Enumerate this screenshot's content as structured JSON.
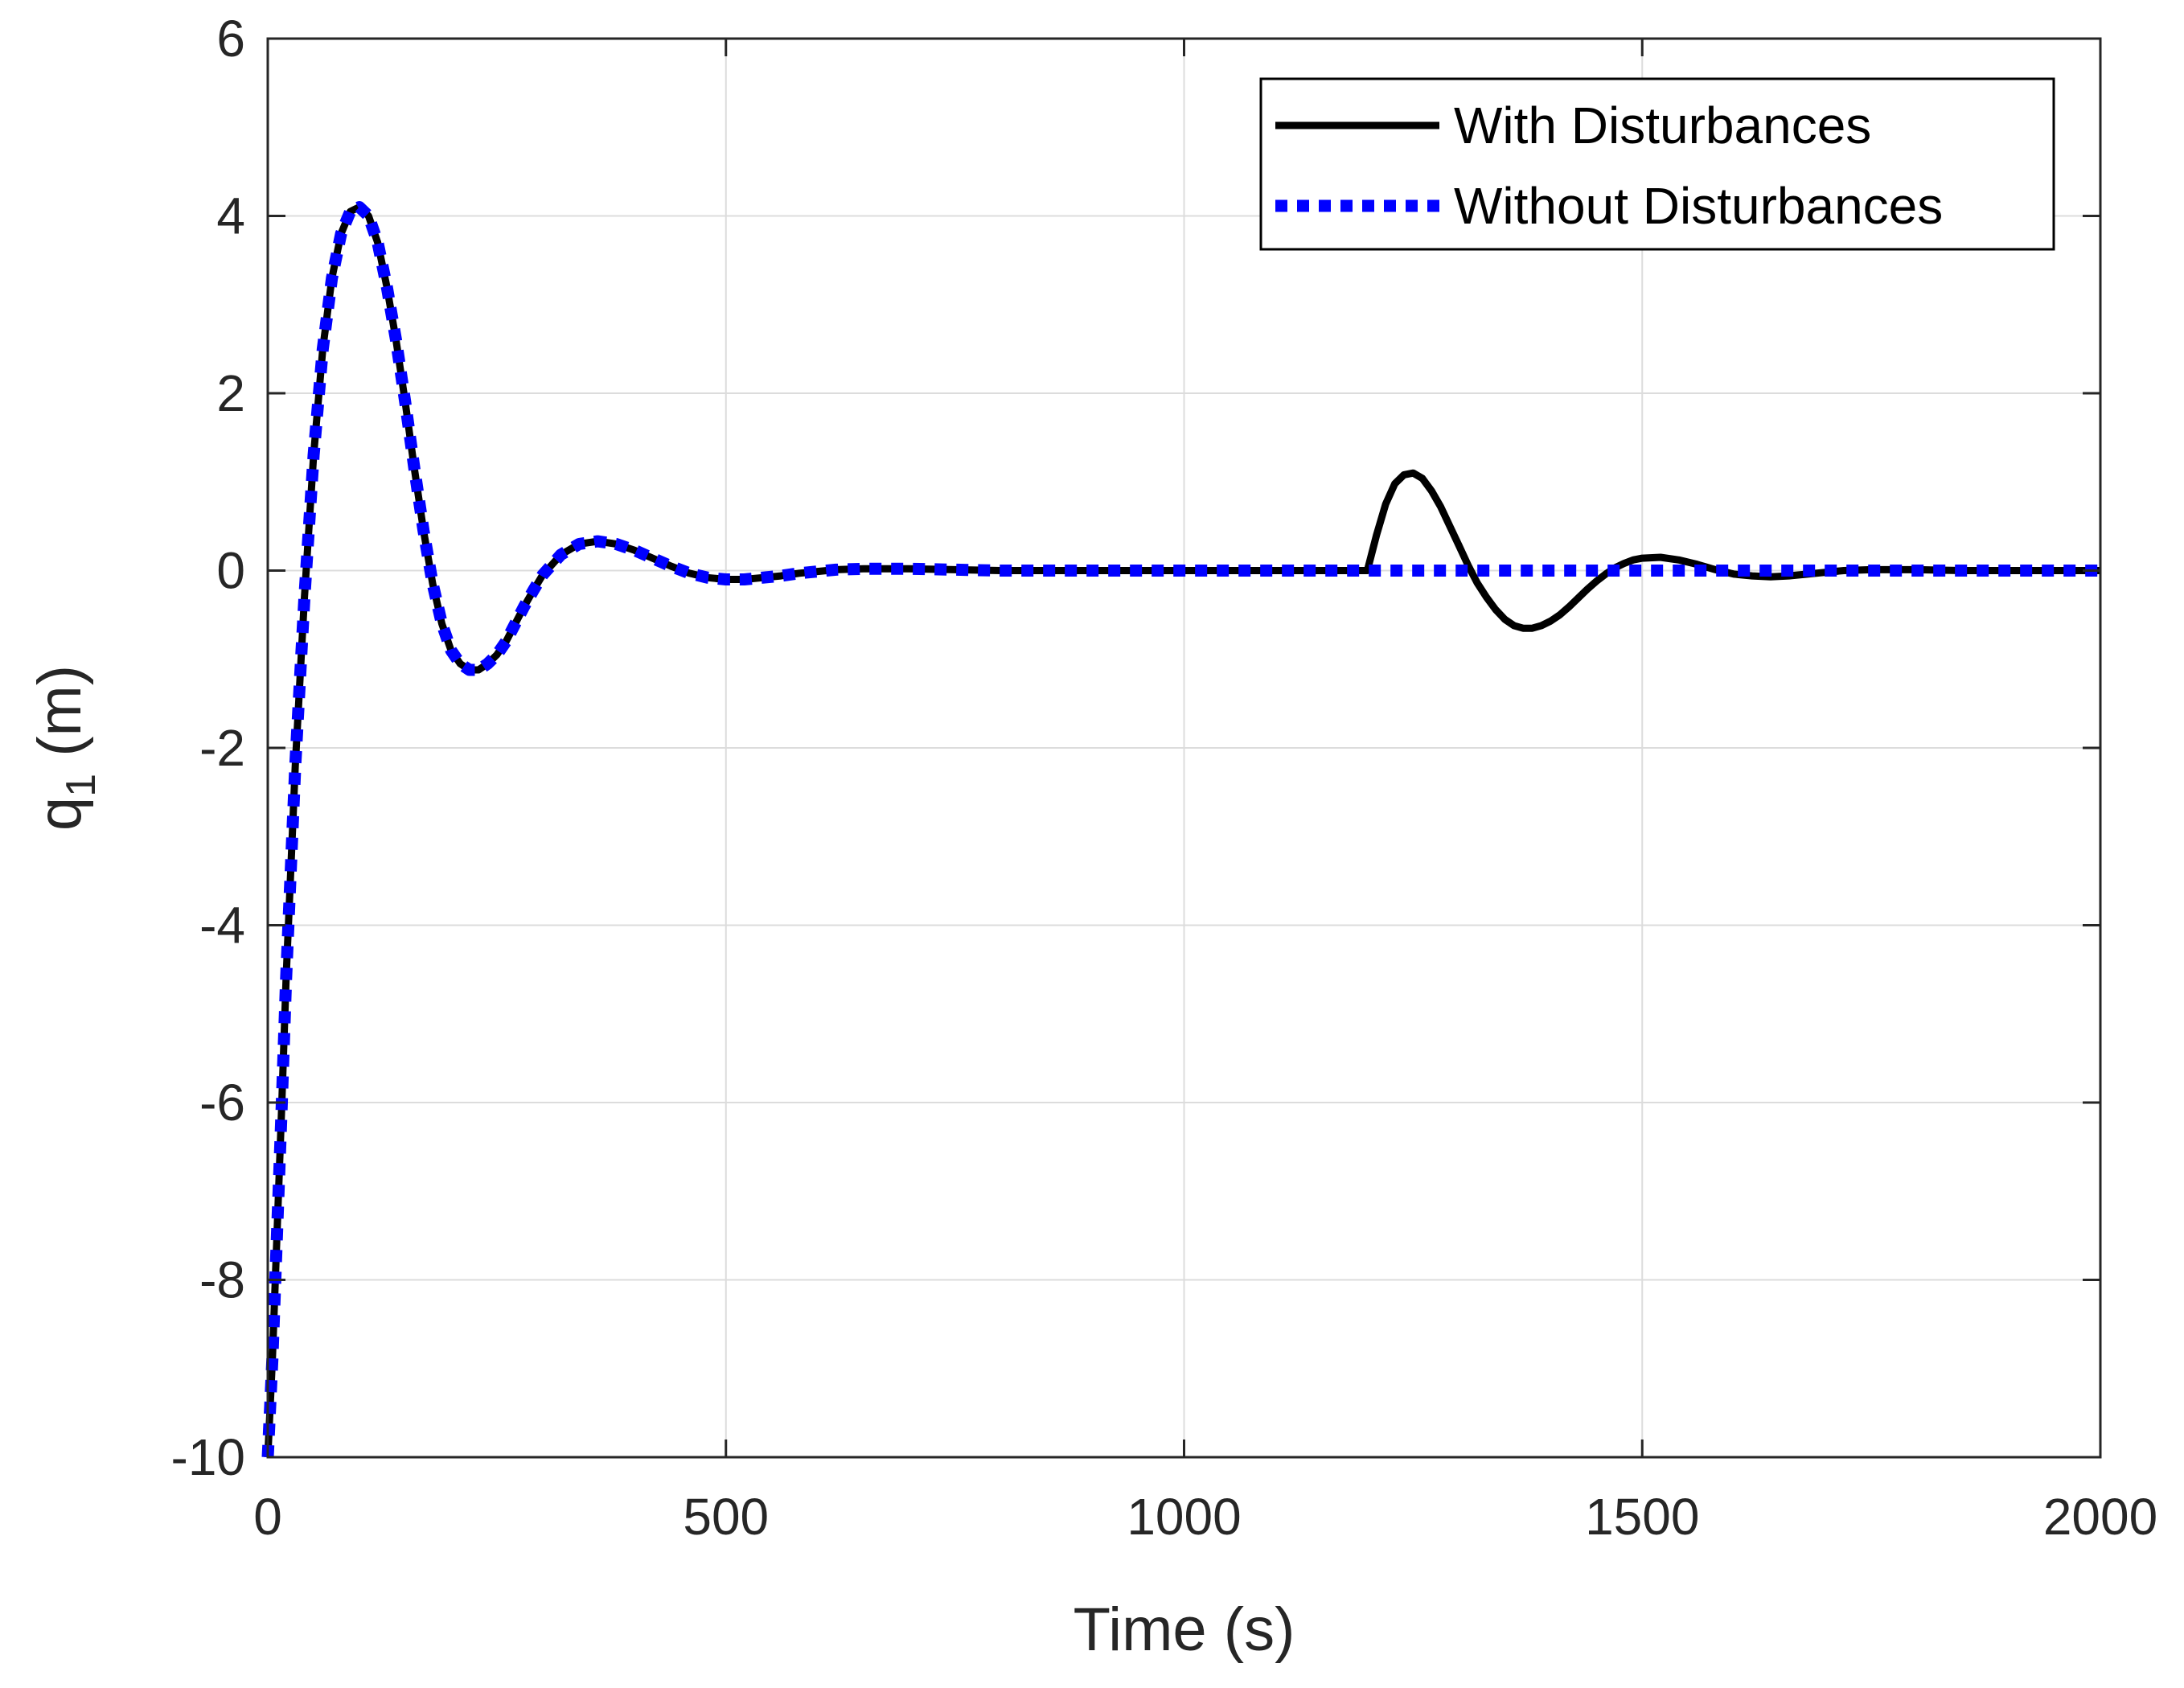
{
  "chart_data": {
    "type": "line",
    "title": "",
    "xlabel": "Time (s)",
    "ylabel": {
      "base": "q",
      "subscript": "1",
      "unit": " (m)"
    },
    "xlim": [
      0,
      2000
    ],
    "ylim": [
      -10,
      6
    ],
    "xticks": [
      0,
      500,
      1000,
      1500,
      2000
    ],
    "xtick_labels": [
      "0",
      "500",
      "1000",
      "1500",
      "2000"
    ],
    "yticks": [
      -10,
      -8,
      -6,
      -4,
      -2,
      0,
      2,
      4,
      6
    ],
    "ytick_labels": [
      "-10",
      "-8",
      "-6",
      "-4",
      "-2",
      "0",
      "2",
      "4",
      "6"
    ],
    "grid": true,
    "legend_position": "top-right",
    "series": [
      {
        "name": "With Disturbances",
        "color": "#000000",
        "style": "solid",
        "x": [
          0,
          5,
          10,
          15,
          20,
          30,
          40,
          50,
          60,
          70,
          80,
          90,
          100,
          110,
          120,
          130,
          140,
          150,
          160,
          170,
          180,
          190,
          200,
          210,
          220,
          230,
          240,
          250,
          260,
          270,
          280,
          290,
          300,
          320,
          340,
          360,
          380,
          400,
          420,
          440,
          460,
          480,
          500,
          520,
          540,
          560,
          580,
          600,
          620,
          650,
          700,
          750,
          800,
          900,
          1000,
          1100,
          1200,
          1210,
          1220,
          1230,
          1240,
          1250,
          1260,
          1270,
          1280,
          1290,
          1300,
          1310,
          1320,
          1330,
          1340,
          1350,
          1360,
          1370,
          1380,
          1390,
          1400,
          1410,
          1420,
          1430,
          1440,
          1450,
          1460,
          1470,
          1480,
          1490,
          1500,
          1520,
          1540,
          1560,
          1580,
          1600,
          1620,
          1640,
          1660,
          1680,
          1700,
          1720,
          1750,
          1800,
          1850,
          1900,
          2000
        ],
        "y": [
          -10,
          -8.9,
          -7.5,
          -6.1,
          -4.6,
          -2.2,
          -0.3,
          1.3,
          2.5,
          3.3,
          3.8,
          4.05,
          4.1,
          4.0,
          3.7,
          3.2,
          2.6,
          1.9,
          1.15,
          0.45,
          -0.15,
          -0.6,
          -0.9,
          -1.05,
          -1.12,
          -1.12,
          -1.05,
          -0.95,
          -0.8,
          -0.6,
          -0.4,
          -0.22,
          -0.05,
          0.18,
          0.3,
          0.33,
          0.3,
          0.23,
          0.14,
          0.05,
          -0.03,
          -0.08,
          -0.1,
          -0.1,
          -0.08,
          -0.06,
          -0.03,
          -0.01,
          0.01,
          0.02,
          0.02,
          0.01,
          0.0,
          0.0,
          0.0,
          0.0,
          0.0,
          0.4,
          0.75,
          0.98,
          1.08,
          1.1,
          1.04,
          0.9,
          0.72,
          0.5,
          0.28,
          0.06,
          -0.14,
          -0.3,
          -0.44,
          -0.55,
          -0.62,
          -0.65,
          -0.65,
          -0.62,
          -0.57,
          -0.5,
          -0.41,
          -0.31,
          -0.21,
          -0.12,
          -0.04,
          0.03,
          0.08,
          0.12,
          0.14,
          0.15,
          0.12,
          0.07,
          0.01,
          -0.04,
          -0.06,
          -0.07,
          -0.06,
          -0.04,
          -0.02,
          0.0,
          0.01,
          0.01,
          0.0,
          0.0,
          0.0
        ]
      },
      {
        "name": "Without Disturbances",
        "color": "#0000ff",
        "style": "dotted",
        "x": [
          0,
          5,
          10,
          15,
          20,
          30,
          40,
          50,
          60,
          70,
          80,
          90,
          100,
          110,
          120,
          130,
          140,
          150,
          160,
          170,
          180,
          190,
          200,
          210,
          220,
          230,
          240,
          250,
          260,
          270,
          280,
          290,
          300,
          320,
          340,
          360,
          380,
          400,
          420,
          440,
          460,
          480,
          500,
          520,
          540,
          560,
          580,
          600,
          620,
          650,
          700,
          750,
          800,
          900,
          1000,
          1100,
          1200,
          1300,
          1400,
          1500,
          1600,
          1700,
          1800,
          1900,
          2000
        ],
        "y": [
          -10,
          -8.9,
          -7.5,
          -6.1,
          -4.6,
          -2.2,
          -0.3,
          1.3,
          2.5,
          3.3,
          3.8,
          4.05,
          4.1,
          4.0,
          3.7,
          3.2,
          2.6,
          1.9,
          1.15,
          0.45,
          -0.15,
          -0.6,
          -0.9,
          -1.05,
          -1.12,
          -1.12,
          -1.05,
          -0.95,
          -0.8,
          -0.6,
          -0.4,
          -0.22,
          -0.05,
          0.18,
          0.3,
          0.33,
          0.3,
          0.23,
          0.14,
          0.05,
          -0.03,
          -0.08,
          -0.1,
          -0.1,
          -0.08,
          -0.06,
          -0.03,
          -0.01,
          0.01,
          0.02,
          0.02,
          0.01,
          0.0,
          0.0,
          0.0,
          0.0,
          0.0,
          0.0,
          0.0,
          0.0,
          0.0,
          0.0,
          0.0,
          0.0,
          0.0
        ]
      }
    ]
  }
}
